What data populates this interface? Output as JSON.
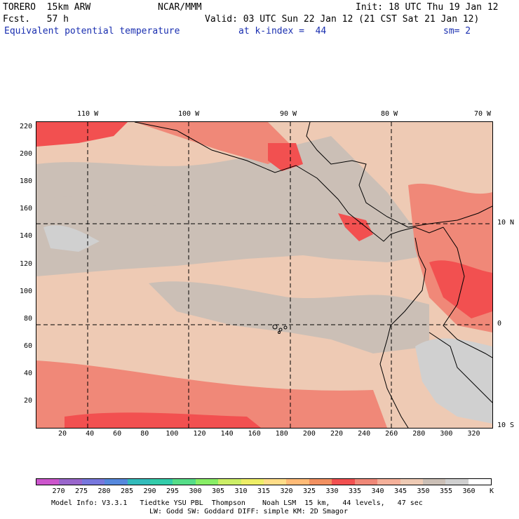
{
  "header": {
    "model": "TORERO  15km ARW",
    "center": "NCAR/MMM",
    "init": "Init: 18 UTC Thu 19 Jan 12",
    "fcst": "Fcst.   57 h",
    "valid": "Valid: 03 UTC Sun 22 Jan 12 (21 CST Sat 21 Jan 12)",
    "field": "Equivalent potential temperature",
    "level": "at k-index =  44",
    "smooth": "sm= 2"
  },
  "map": {
    "lon_labels": [
      "110 W",
      "100 W",
      "90 W",
      "80 W",
      "70 W"
    ],
    "lat_labels": [
      "10 N",
      "0",
      "10 S"
    ],
    "y_ticks": [
      "220",
      "200",
      "180",
      "160",
      "140",
      "120",
      "100",
      "80",
      "60",
      "40",
      "20"
    ],
    "x_ticks": [
      "20",
      "40",
      "60",
      "80",
      "100",
      "120",
      "140",
      "160",
      "180",
      "200",
      "220",
      "240",
      "260",
      "280",
      "300",
      "320"
    ]
  },
  "colorbar": {
    "labels": [
      "270",
      "275",
      "280",
      "285",
      "290",
      "295",
      "300",
      "305",
      "310",
      "315",
      "320",
      "325",
      "330",
      "335",
      "340",
      "345",
      "350",
      "355",
      "360",
      "K"
    ],
    "colors": [
      "#cc55cc",
      "#9966cc",
      "#7777dd",
      "#5588dd",
      "#33bbbb",
      "#33ccaa",
      "#55dd88",
      "#88ee66",
      "#ccee66",
      "#eeee66",
      "#ffdd88",
      "#ffbb77",
      "#f29060",
      "#f25050",
      "#f08878",
      "#f5b09a",
      "#eecab4",
      "#cbbfb6",
      "#d0d0d0",
      "#ffffff"
    ]
  },
  "footer": {
    "line1": "Model Info: V3.3.1   Tiedtke YSU PBL  Thompson    Noah LSM  15 km,   44 levels,   47 sec",
    "line2": "LW: Godd SW: Goddard DIFF: simple KM: 2D Smagor"
  }
}
